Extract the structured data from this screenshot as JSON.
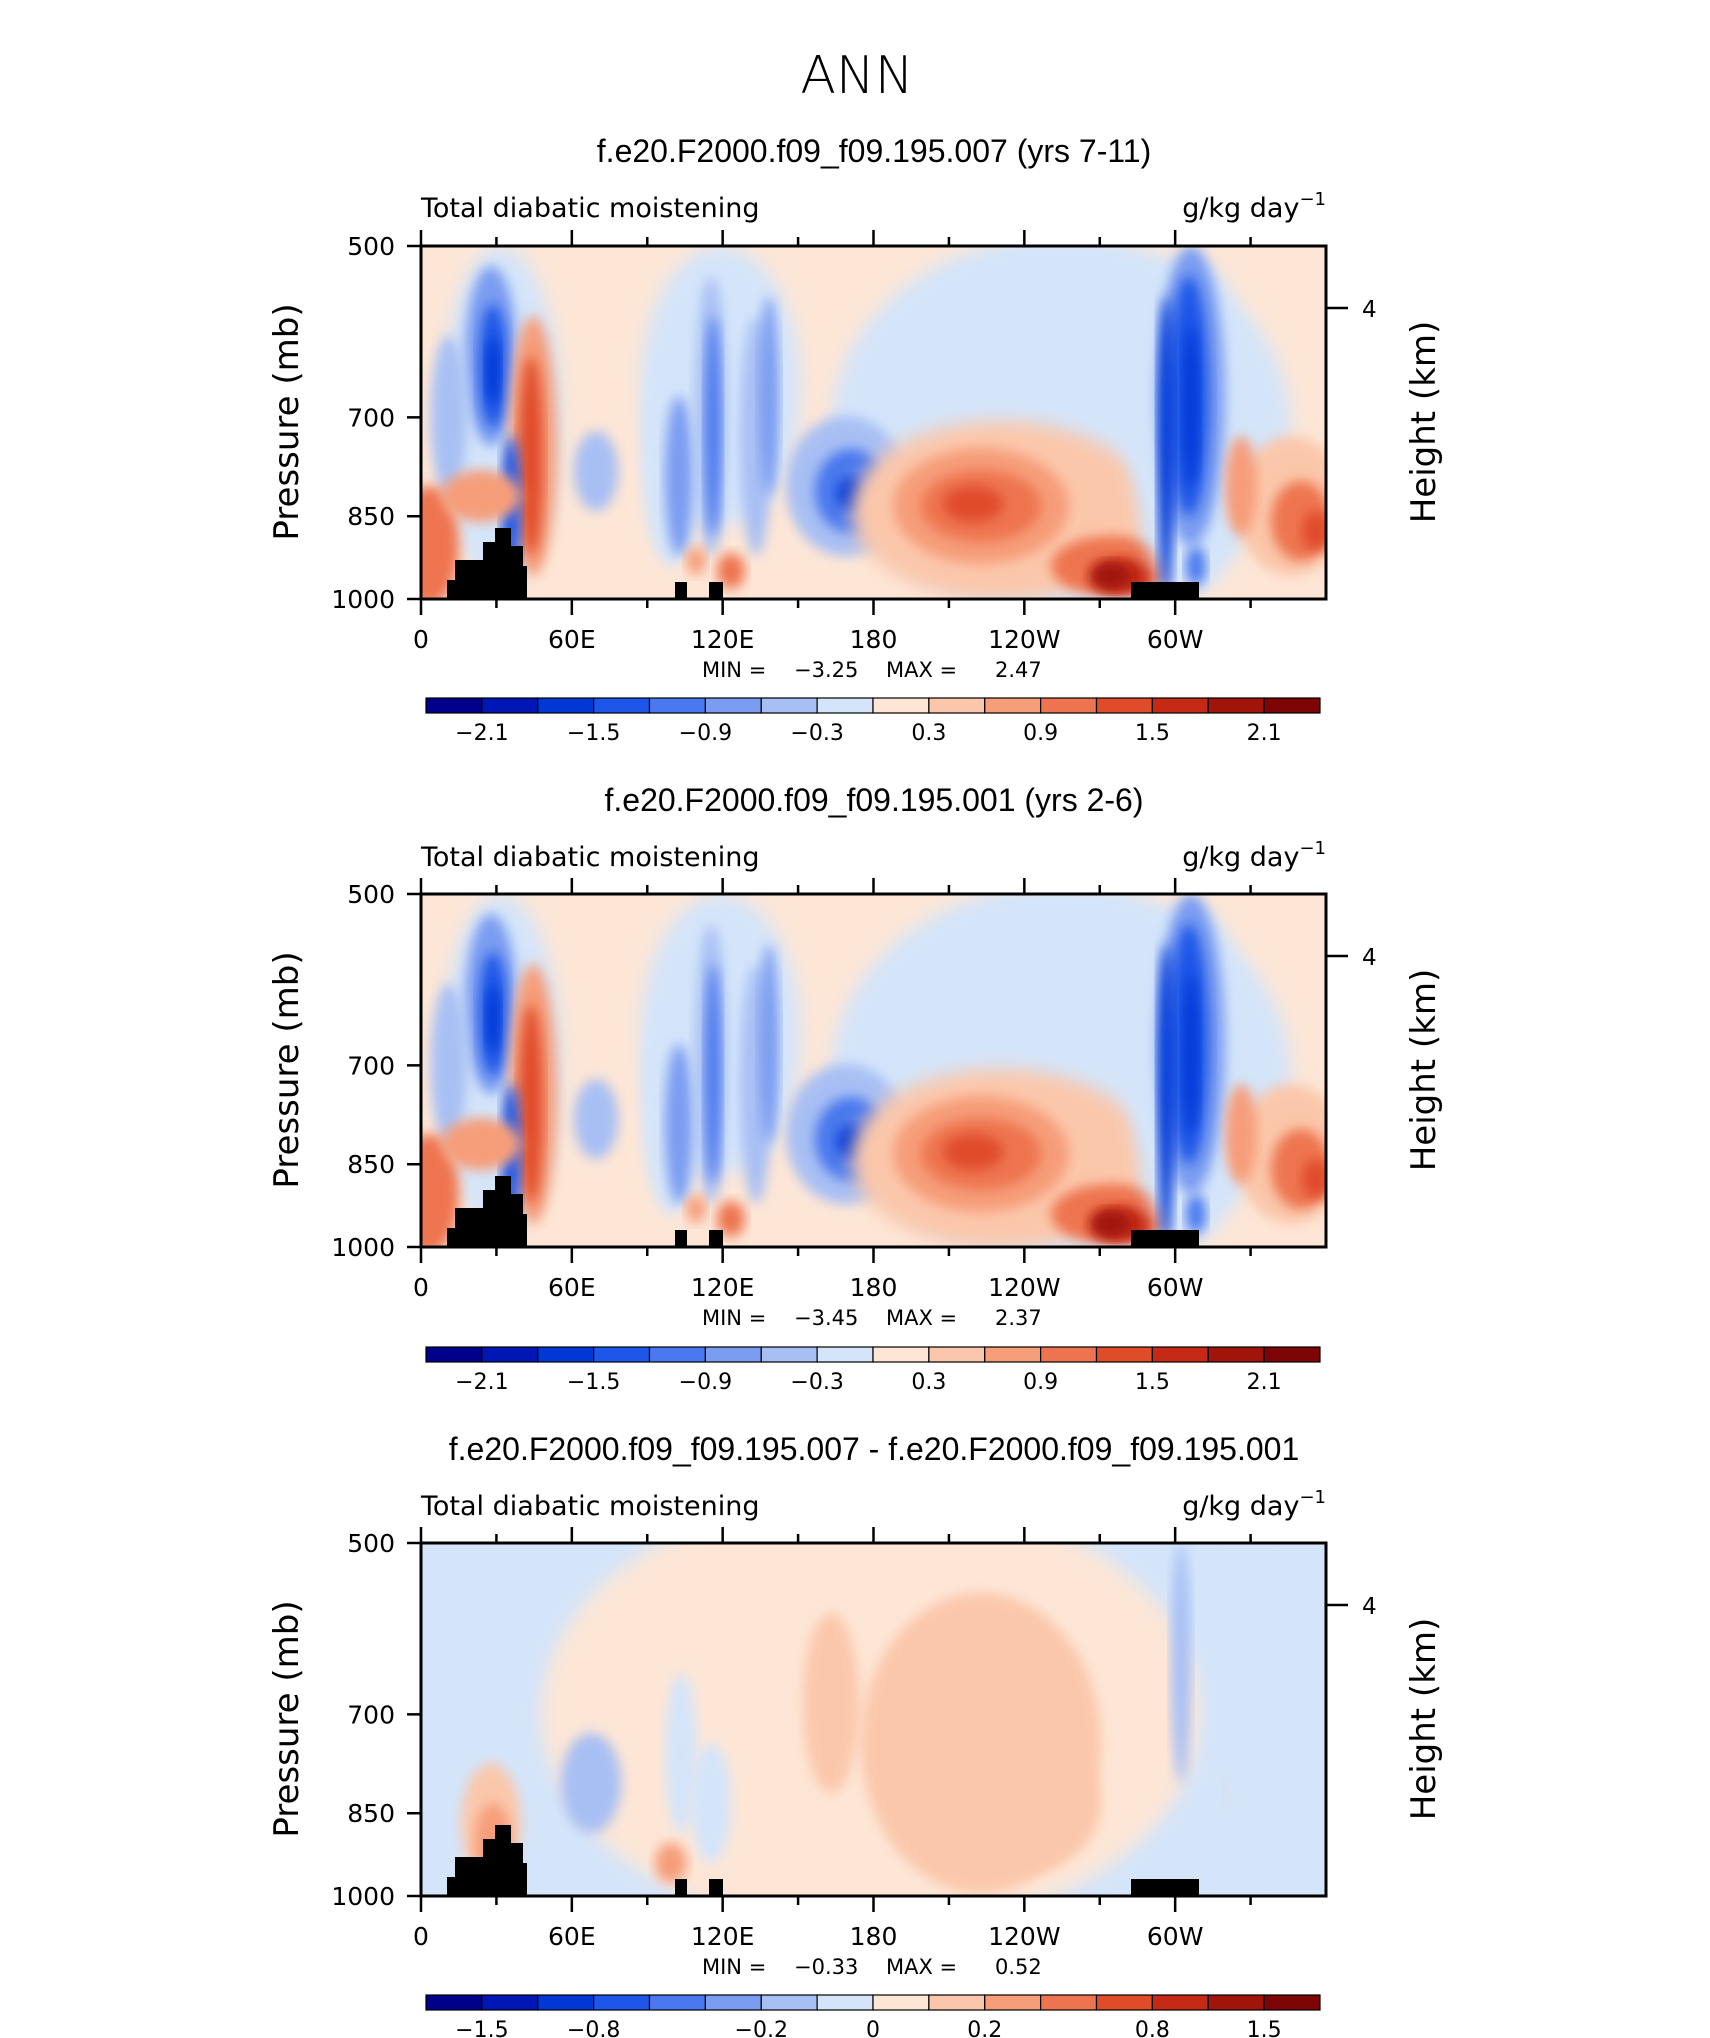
{
  "figure_title": "ANN",
  "chart_data": [
    {
      "type": "heatmap",
      "title": "f.e20.F2000.f09_f09.195.007 (yrs 7-11)",
      "left_string": "Total diabatic moistening",
      "right_string": "g/kg day",
      "right_string_sup": "−1",
      "ylabel": "Pressure (mb)",
      "ylabel_right": "Height (km)",
      "yticks": [
        "500",
        "700",
        "850",
        "1000"
      ],
      "yticks_right": [
        "4"
      ],
      "xticks": [
        "0",
        "60E",
        "120E",
        "180",
        "120W",
        "60W"
      ],
      "min_label": "MIN =",
      "min_value": "−3.25",
      "max_label": "MAX =",
      "max_value": "2.47",
      "colorbar_labels": [
        "−2.1",
        "−1.5",
        "−0.9",
        "−0.3",
        "0.3",
        "0.9",
        "1.5",
        "2.1"
      ],
      "levels": [
        -2.4,
        -2.1,
        -1.8,
        -1.5,
        -1.2,
        -0.9,
        -0.6,
        -0.3,
        0,
        0.3,
        0.6,
        0.9,
        1.2,
        1.5,
        1.8,
        2.1,
        2.4
      ]
    },
    {
      "type": "heatmap",
      "title": "f.e20.F2000.f09_f09.195.001 (yrs 2-6)",
      "left_string": "Total diabatic moistening",
      "right_string": "g/kg day",
      "right_string_sup": "−1",
      "ylabel": "Pressure (mb)",
      "ylabel_right": "Height (km)",
      "yticks": [
        "500",
        "700",
        "850",
        "1000"
      ],
      "yticks_right": [
        "4"
      ],
      "xticks": [
        "0",
        "60E",
        "120E",
        "180",
        "120W",
        "60W"
      ],
      "min_label": "MIN =",
      "min_value": "−3.45",
      "max_label": "MAX =",
      "max_value": "2.37",
      "colorbar_labels": [
        "−2.1",
        "−1.5",
        "−0.9",
        "−0.3",
        "0.3",
        "0.9",
        "1.5",
        "2.1"
      ],
      "levels": [
        -2.4,
        -2.1,
        -1.8,
        -1.5,
        -1.2,
        -0.9,
        -0.6,
        -0.3,
        0,
        0.3,
        0.6,
        0.9,
        1.2,
        1.5,
        1.8,
        2.1,
        2.4
      ]
    },
    {
      "type": "heatmap",
      "title": "f.e20.F2000.f09_f09.195.007 - f.e20.F2000.f09_f09.195.001",
      "left_string": "Total diabatic moistening",
      "right_string": "g/kg day",
      "right_string_sup": "−1",
      "ylabel": "Pressure (mb)",
      "ylabel_right": "Height (km)",
      "yticks": [
        "500",
        "700",
        "850",
        "1000"
      ],
      "yticks_right": [
        "4"
      ],
      "xticks": [
        "0",
        "60E",
        "120E",
        "180",
        "120W",
        "60W"
      ],
      "min_label": "MIN =",
      "min_value": "−0.33",
      "max_label": "MAX =",
      "max_value": "0.52",
      "colorbar_labels": [
        "−1.5",
        "−0.8",
        "−0.2",
        "0",
        "0.2",
        "0.8",
        "1.5"
      ],
      "levels": [
        -2.0,
        -1.5,
        -1.2,
        -0.8,
        -0.6,
        -0.4,
        -0.2,
        -0.1,
        0,
        0.1,
        0.2,
        0.4,
        0.6,
        0.8,
        1.2,
        1.5,
        2.0
      ]
    }
  ],
  "colormap": [
    "#00008a",
    "#0017b6",
    "#0038d6",
    "#1d56e8",
    "#4a78ee",
    "#7a9cf1",
    "#a8bff4",
    "#d4e5fa",
    "#fde6d6",
    "#fbc7ab",
    "#f69d79",
    "#ee744f",
    "#e04b29",
    "#c52a16",
    "#a1140a",
    "#7d0505"
  ]
}
